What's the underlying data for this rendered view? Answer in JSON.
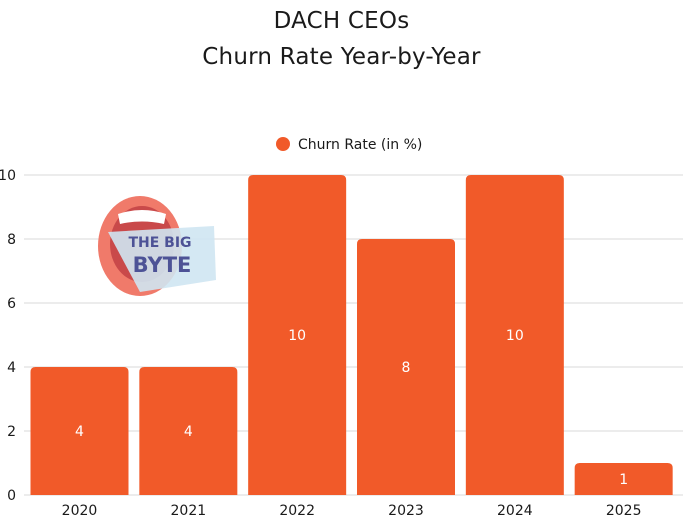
{
  "chart_data": {
    "type": "bar",
    "title_lines": [
      "DACH CEOs",
      "Churn Rate Year-by-Year"
    ],
    "categories": [
      "2020",
      "2021",
      "2022",
      "2023",
      "2024",
      "2025"
    ],
    "series": [
      {
        "name": "Churn Rate (in %)",
        "values": [
          4,
          4,
          10,
          8,
          10,
          1
        ],
        "color": "#f15a29"
      }
    ],
    "data_labels": [
      "4",
      "4",
      "10",
      "8",
      "10",
      "1"
    ],
    "ylim": [
      0,
      10
    ],
    "yticks": [
      "0",
      "2",
      "4",
      "6",
      "8",
      "10"
    ],
    "grid": true,
    "legend_position": "top-center"
  },
  "logo": {
    "text": "THE BIG BYTE",
    "line1": "THE BIG",
    "line2": "BYTE"
  }
}
